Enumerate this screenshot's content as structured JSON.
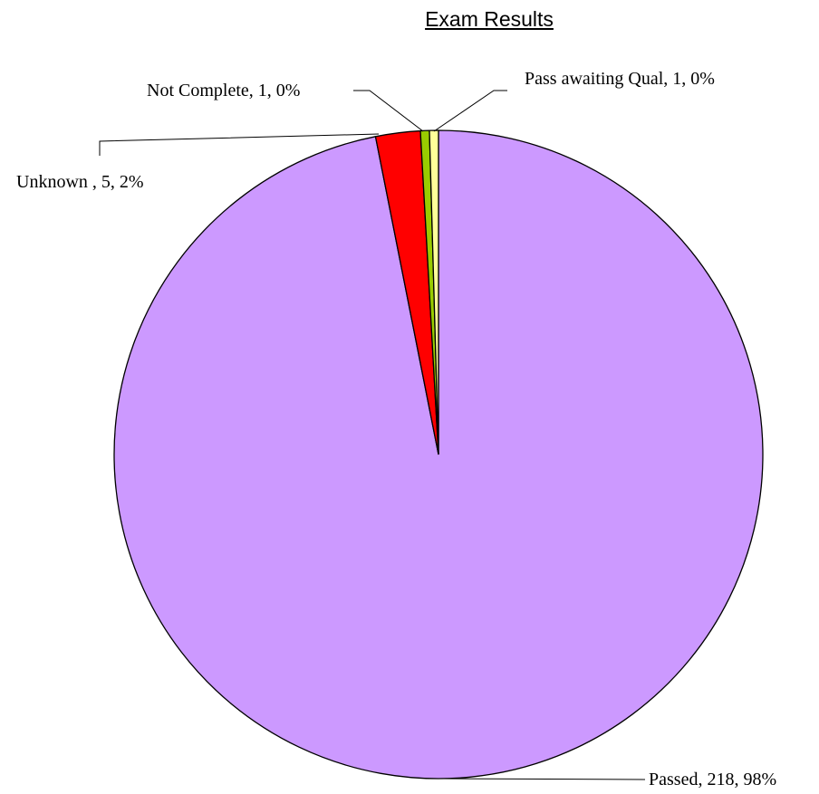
{
  "chart_data": {
    "type": "pie",
    "title": "Exam Results",
    "categories": [
      "Passed",
      "Unknown ",
      "Not Complete",
      "Pass awaiting Qual"
    ],
    "values": [
      218,
      5,
      1,
      1
    ],
    "value_labels": [
      "Passed, 218, 98%",
      "Unknown , 5, 2%",
      "Not Complete, 1, 0%",
      "Pass awaiting Qual, 1, 0%"
    ],
    "colors": [
      "#cc99ff",
      "#ff0000",
      "#99cc00",
      "#ffff99"
    ]
  }
}
